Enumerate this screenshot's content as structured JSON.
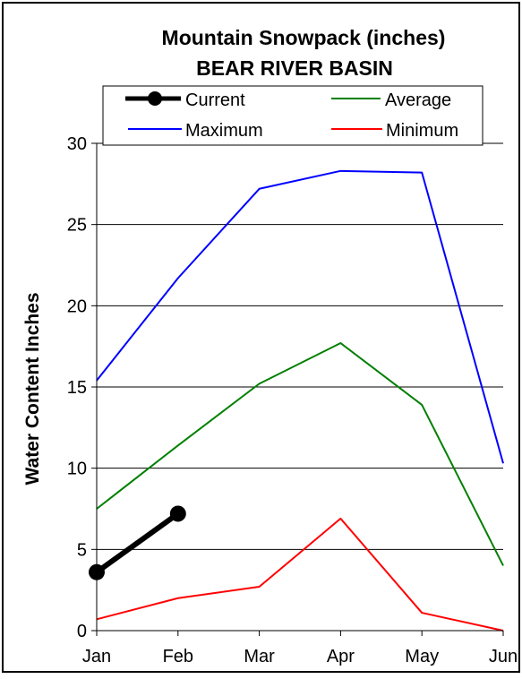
{
  "chart_data": {
    "type": "line",
    "title": "Mountain Snowpack (inches)",
    "subtitle": "BEAR RIVER BASIN",
    "xlabel": "",
    "ylabel": "Water Content Inches",
    "categories": [
      "Jan",
      "Feb",
      "Mar",
      "Apr",
      "May",
      "Jun"
    ],
    "ylim": [
      0,
      30
    ],
    "yticks": [
      "0",
      "5",
      "10",
      "15",
      "20",
      "25",
      "30"
    ],
    "grid": true,
    "legend_position": "top",
    "series": [
      {
        "name": "Current",
        "color": "#000000",
        "values": [
          3.6,
          7.2,
          null,
          null,
          null,
          null
        ]
      },
      {
        "name": "Average",
        "color": "#008000",
        "values": [
          7.5,
          11.4,
          15.2,
          17.7,
          13.9,
          4.0
        ]
      },
      {
        "name": "Maximum",
        "color": "#0000ff",
        "values": [
          15.4,
          21.7,
          27.2,
          28.3,
          28.2,
          10.3
        ]
      },
      {
        "name": "Minimum",
        "color": "#ff0000",
        "values": [
          0.7,
          2.0,
          2.7,
          6.9,
          1.1,
          0.0
        ]
      }
    ]
  }
}
